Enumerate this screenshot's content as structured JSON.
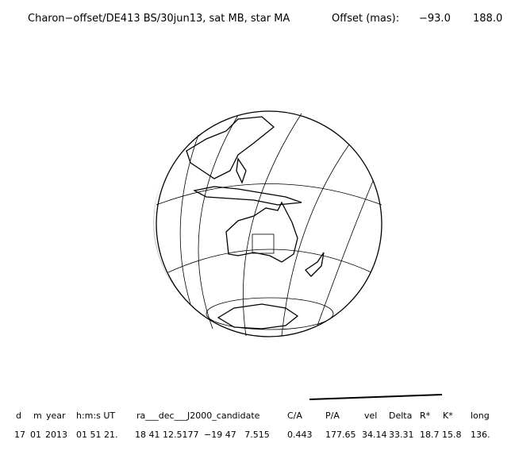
{
  "header": {
    "title": "Charon−offset/DE413 BS/30jun13, sat MB, star MA",
    "offset_label": "Offset (mas):",
    "offsets": [
      "−93.0",
      "188.0"
    ]
  },
  "table": {
    "headers": [
      "d",
      "m",
      "year",
      "h:m:s UT",
      "ra___dec___J2000_candidate",
      "C/A",
      "P/A",
      "vel",
      "Delta",
      "R*",
      "K*",
      "long"
    ],
    "row": [
      "17",
      "01",
      "2013",
      "01 51 21.",
      "18 41 12.5177",
      "−19 47   7.515",
      "0.443",
      "177.65",
      "34.14",
      "33.31",
      "18.7",
      "15.8",
      "136."
    ]
  }
}
